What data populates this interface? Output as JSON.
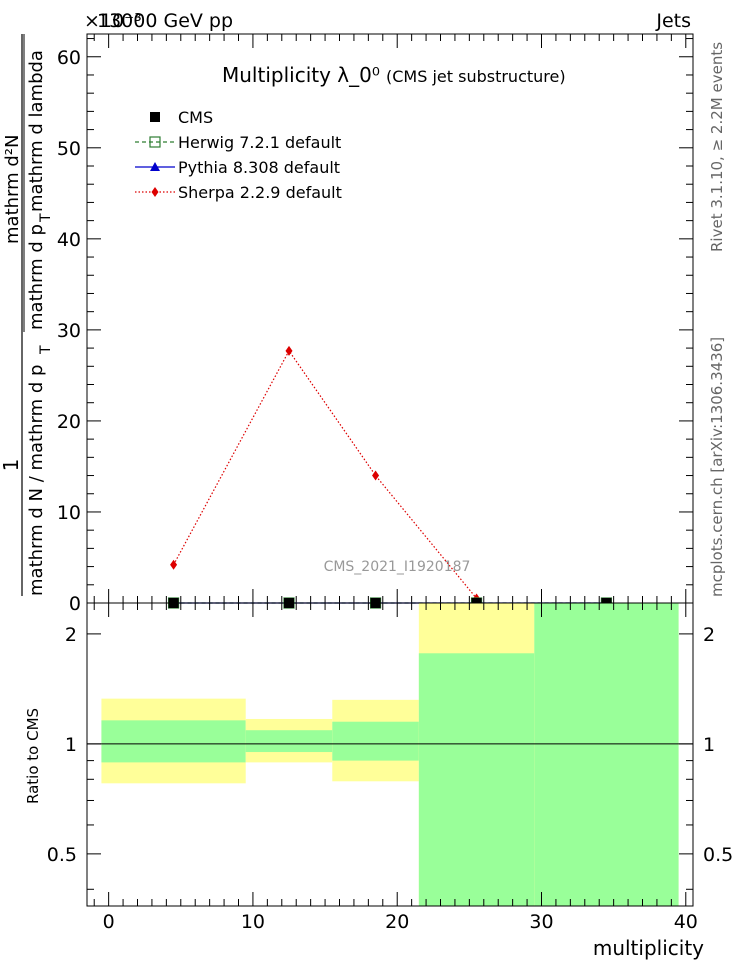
{
  "header": {
    "left": "13000 GeV pp",
    "right": "Jets",
    "exponent": "×10⁻³"
  },
  "side_labels": {
    "rivet": "Rivet 3.1.10, ≥ 2.2M events",
    "mcplots": "mcplots.cern.ch [arXiv:1306.3436]"
  },
  "chart_data": [
    {
      "type": "line",
      "title": "Multiplicity  λ_0⁰",
      "subtitle": "(CMS jet substructure)",
      "watermark": "CMS_2021_I1920187",
      "ylabel": "1 / mathrm d N / mathrm d p_T mathrm d² N / mathrm d p_T mathrm d lambda",
      "ylabel_numerator": "1",
      "ylabel_denominator": "mathrm d N / mathrm d p",
      "ylabel_denominator_sub": "T",
      "ylabel_fraction_num": "mathrm d²N",
      "ylabel_fraction_den_a": "mathrm d p",
      "ylabel_fraction_den_sub": "T",
      "ylabel_fraction_den_b": "mathrm d lambda",
      "xlim": [
        -1.5,
        40.5
      ],
      "ylim": [
        0,
        62.5
      ],
      "y_scale_note": "×10⁻³",
      "yticks": [
        0,
        10,
        20,
        30,
        40,
        50,
        60
      ],
      "legend_position": "top-left",
      "series": [
        {
          "name": "CMS",
          "color": "#000000",
          "marker": "square",
          "x": [
            4.5,
            12.5,
            18.5,
            25.5,
            34.5
          ],
          "y": [
            0.0,
            0.0,
            0.0,
            0.0,
            0.0
          ]
        },
        {
          "name": "Herwig 7.2.1 default",
          "color": "#2e7d32",
          "marker": "open-square",
          "line": "dashed",
          "x": [
            4.5,
            12.5,
            18.5,
            25.5,
            34.5
          ],
          "y": [
            0.0,
            0.0,
            0.0,
            0.0,
            0.0
          ]
        },
        {
          "name": "Pythia 8.308 default",
          "color": "#0000cc",
          "marker": "triangle",
          "line": "solid",
          "x": [
            4.5,
            12.5,
            18.5,
            25.5,
            34.5
          ],
          "y": [
            0.0,
            0.0,
            0.0,
            0.0,
            0.0
          ]
        },
        {
          "name": "Sherpa 2.2.9 default",
          "color": "#dd0000",
          "marker": "diamond",
          "line": "dotted",
          "x": [
            4.5,
            12.5,
            18.5,
            25.5
          ],
          "y": [
            4.2,
            27.7,
            14.0,
            0.5
          ]
        }
      ]
    },
    {
      "type": "area",
      "ylabel": "Ratio to CMS",
      "xlabel": "multiplicity",
      "xlim": [
        -1.5,
        40.5
      ],
      "ylim": [
        0.36,
        2.43
      ],
      "y_scale": "log",
      "yticks": [
        0.5,
        1,
        2
      ],
      "reference_line": 1,
      "bands": [
        {
          "x_range": [
            -0.5,
            9.5
          ],
          "stat": [
            0.89,
            1.16
          ],
          "total": [
            0.78,
            1.33
          ]
        },
        {
          "x_range": [
            9.5,
            15.5
          ],
          "stat": [
            0.95,
            1.09
          ],
          "total": [
            0.89,
            1.17
          ]
        },
        {
          "x_range": [
            15.5,
            21.5
          ],
          "stat": [
            0.9,
            1.15
          ],
          "total": [
            0.79,
            1.32
          ]
        },
        {
          "x_range": [
            21.5,
            29.5
          ],
          "stat": [
            0.36,
            1.77
          ],
          "total": [
            0.36,
            2.43
          ]
        },
        {
          "x_range": [
            29.5,
            39.5
          ],
          "stat": [
            0.36,
            2.43
          ],
          "total": [
            0.36,
            2.43
          ]
        }
      ],
      "band_colors": {
        "stat": "#99ff99",
        "total": "#ffff99"
      },
      "xticks": [
        0,
        10,
        20,
        30,
        40
      ]
    }
  ]
}
